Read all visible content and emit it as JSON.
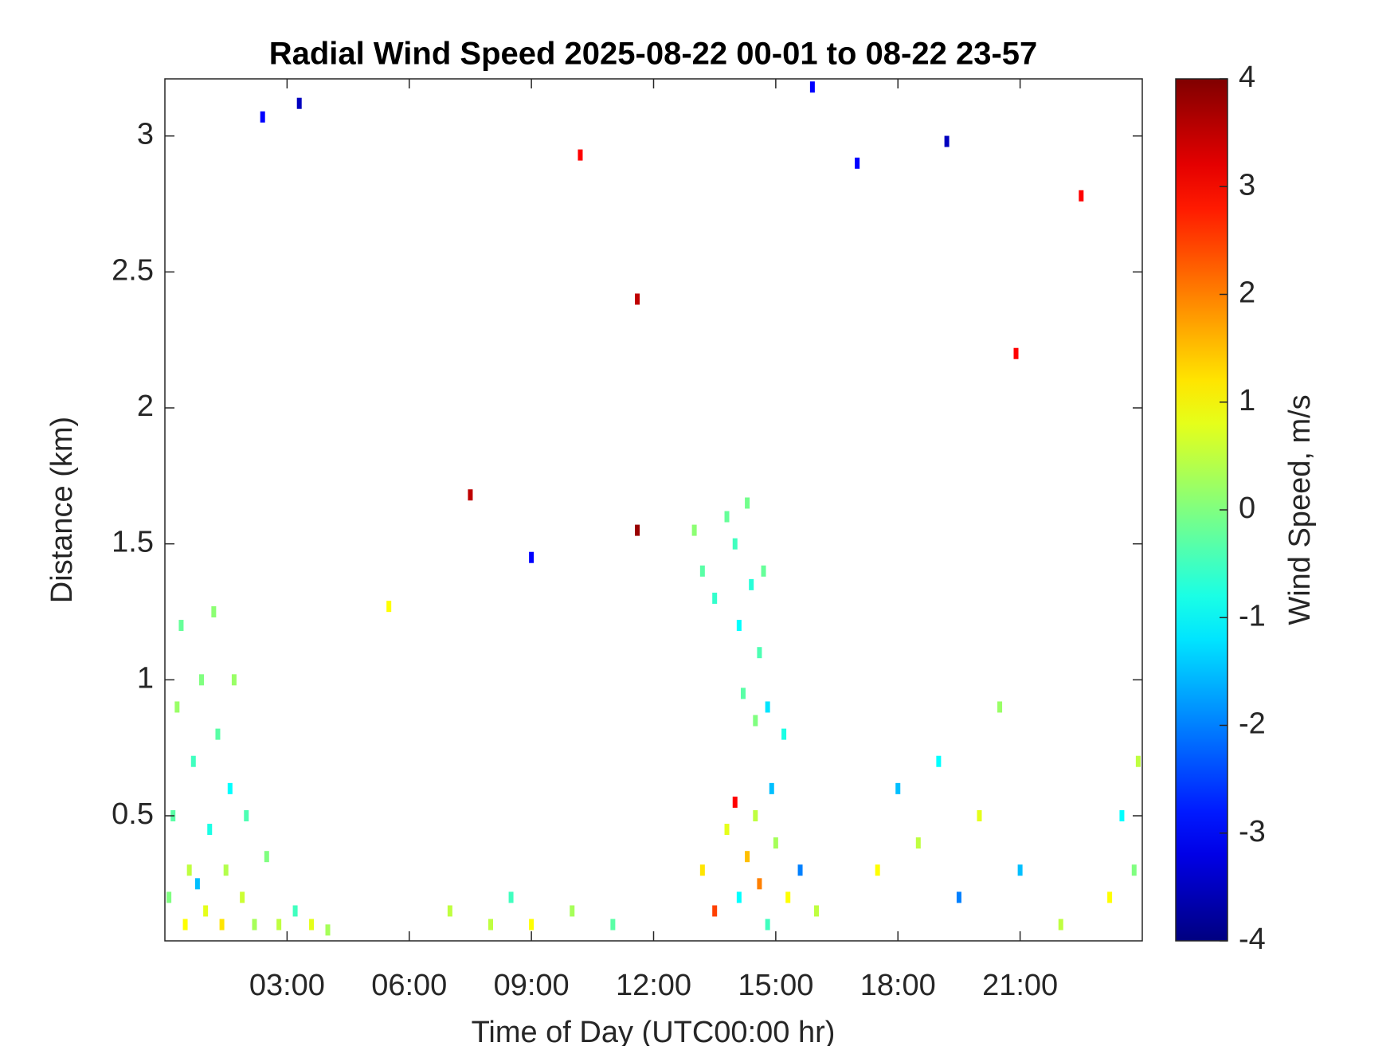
{
  "chart_data": {
    "type": "heatmap",
    "title": "Radial Wind Speed 2025-08-22 00-01 to 08-22 23-57",
    "x_label": "Time of Day (UTC00:00 hr)",
    "y_label": "Distance (km)",
    "xlim": [
      0,
      24
    ],
    "ylim": [
      0.04,
      3.21
    ],
    "xticks": [
      {
        "value": 3,
        "label": "03:00"
      },
      {
        "value": 6,
        "label": "06:00"
      },
      {
        "value": 9,
        "label": "09:00"
      },
      {
        "value": 12,
        "label": "12:00"
      },
      {
        "value": 15,
        "label": "15:00"
      },
      {
        "value": 18,
        "label": "18:00"
      },
      {
        "value": 21,
        "label": "21:00"
      }
    ],
    "yticks": [
      0.5,
      1,
      1.5,
      2,
      2.5,
      3
    ],
    "x": [
      0.1,
      0.2,
      0.3,
      0.4,
      0.6,
      0.7,
      0.9,
      1.0,
      1.1,
      1.2,
      1.3,
      1.5,
      1.6,
      1.7,
      1.9,
      2.0,
      2.2,
      2.5,
      2.8,
      3.2,
      3.6,
      4.0,
      0.5,
      0.8,
      1.4,
      13.0,
      13.2,
      13.5,
      13.8,
      14.0,
      14.1,
      14.3,
      14.4,
      14.6,
      14.7,
      14.2,
      14.5,
      14.8,
      15.2,
      14.9,
      13.2,
      13.5,
      13.8,
      14.0,
      14.1,
      14.3,
      14.5,
      14.6,
      14.8,
      15.0,
      15.3,
      15.6,
      16.0,
      17.5,
      18.0,
      18.5,
      19.0,
      19.5,
      20.0,
      20.5,
      21.0,
      22.0,
      23.2,
      23.8,
      23.9,
      23.5,
      8.0,
      8.5,
      9.0,
      10.0,
      11.0,
      7.0,
      2.4,
      5.5,
      11.6,
      11.6,
      10.2,
      3.3,
      17.0,
      22.5,
      15.9,
      19.2,
      9.0,
      7.5,
      20.9
    ],
    "y": [
      0.2,
      0.5,
      0.9,
      1.2,
      0.3,
      0.7,
      1.0,
      0.15,
      0.45,
      1.25,
      0.8,
      0.3,
      0.6,
      1.0,
      0.2,
      0.5,
      0.1,
      0.35,
      0.1,
      0.15,
      0.1,
      0.08,
      0.1,
      0.25,
      0.1,
      1.55,
      1.4,
      1.3,
      1.6,
      1.5,
      1.2,
      1.65,
      1.35,
      1.1,
      1.4,
      0.95,
      0.85,
      0.9,
      0.8,
      0.6,
      0.3,
      0.15,
      0.45,
      0.55,
      0.2,
      0.35,
      0.5,
      0.25,
      0.1,
      0.4,
      0.2,
      0.3,
      0.15,
      0.3,
      0.6,
      0.4,
      0.7,
      0.2,
      0.5,
      0.9,
      0.3,
      0.1,
      0.2,
      0.3,
      0.7,
      0.5,
      0.1,
      0.2,
      0.1,
      0.15,
      0.1,
      0.15,
      3.07,
      1.27,
      2.4,
      1.55,
      2.93,
      3.12,
      2.9,
      2.78,
      3.18,
      2.98,
      1.45,
      1.68,
      2.2
    ],
    "values": [
      0,
      -0.3,
      0.2,
      -0.2,
      0.5,
      -0.5,
      0,
      0.8,
      -0.8,
      0.1,
      -0.3,
      0.4,
      -1,
      0.2,
      0.6,
      -0.4,
      0.3,
      0,
      0.5,
      -0.5,
      0.8,
      0.3,
      1.0,
      -1.5,
      1.2,
      0.1,
      -0.3,
      -0.6,
      -0.2,
      -0.5,
      -1,
      -0.1,
      -0.7,
      -0.4,
      -0.2,
      -0.3,
      0,
      -1.2,
      -0.8,
      -1.5,
      1.2,
      2.5,
      0.8,
      3,
      -1,
      1.5,
      0.5,
      2,
      -0.5,
      0.3,
      1,
      -2,
      0.5,
      1,
      -1.5,
      0.5,
      -1,
      -2,
      0.8,
      0.2,
      -1.5,
      0.5,
      1,
      0,
      0.5,
      -1,
      0.5,
      -0.5,
      1.0,
      0.3,
      -0.3,
      0.5,
      -3,
      1,
      3.5,
      3.8,
      3,
      -3.5,
      -3,
      3,
      -3,
      -3.5,
      -3,
      3.5,
      3
    ],
    "colorbar": {
      "label": "Wind Speed, m/s",
      "lim": [
        -4,
        4
      ],
      "ticks": [
        -4,
        -3,
        -2,
        -1,
        0,
        1,
        2,
        3,
        4
      ],
      "colormap": "jet"
    }
  }
}
